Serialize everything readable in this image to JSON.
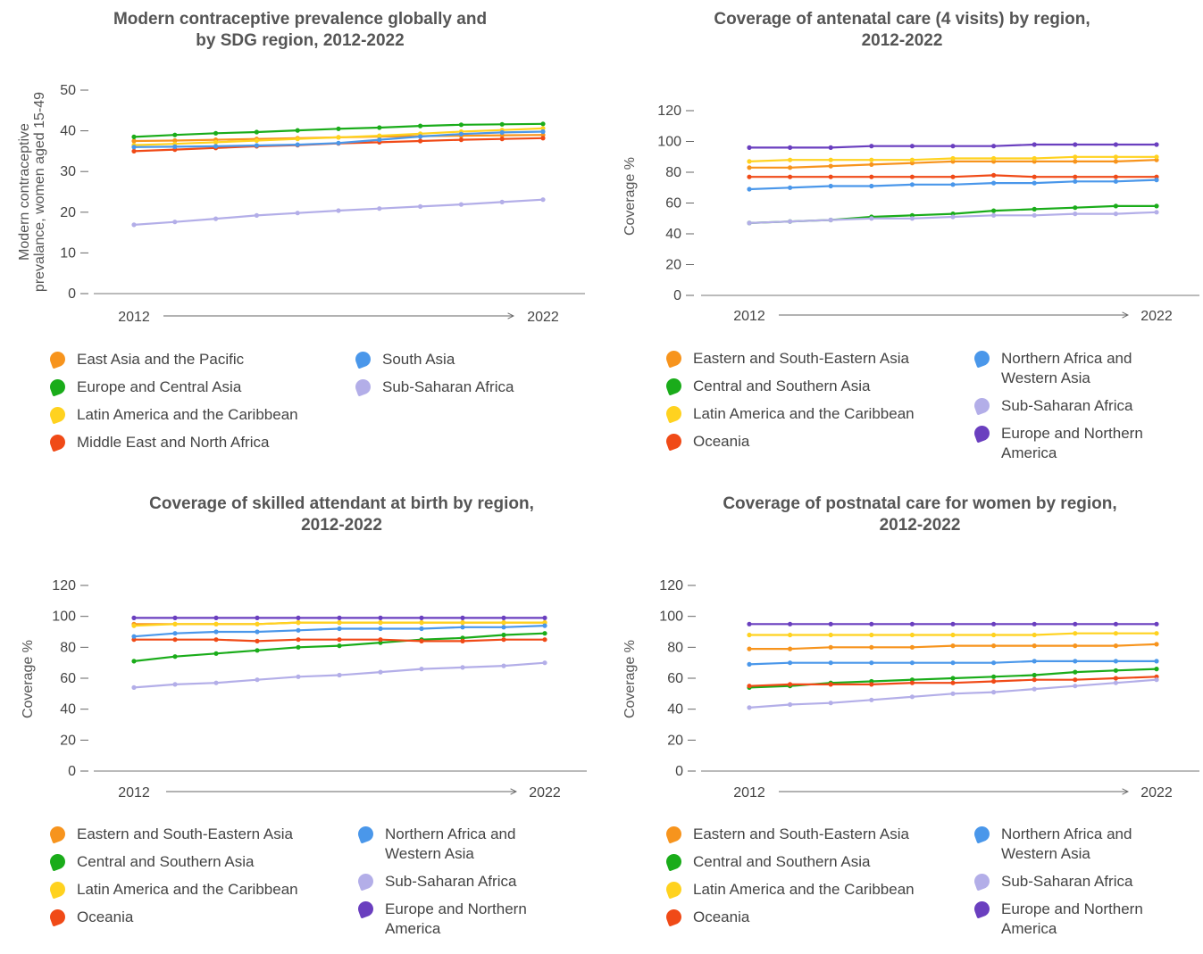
{
  "charts": [
    {
      "title_lines": [
        "Modern contraceptive prevalence globally and",
        "by SDG region, 2012-2022"
      ],
      "ylabel_lines": [
        "Modern contraceptive",
        "prevalance, women aged 15-49"
      ],
      "yticks": [
        "0",
        "10",
        "20",
        "30",
        "40",
        "50"
      ],
      "x_start": "2012",
      "x_end": "2022",
      "legend_left": [
        {
          "label": "East Asia and the Pacific",
          "color": "#f7941d"
        },
        {
          "label": "Europe and Central Asia",
          "color": "#1aac1a"
        },
        {
          "label": "Latin America and the Caribbean",
          "color": "#ffd21f"
        },
        {
          "label": "Middle East and North Africa",
          "color": "#f04a17"
        }
      ],
      "legend_right": [
        {
          "label": "South Asia",
          "color": "#4a97ea"
        },
        {
          "label": "Sub-Saharan Africa",
          "color": "#b3aee8"
        }
      ]
    },
    {
      "title_lines": [
        "Coverage of antenatal care (4 visits) by region,",
        "2012-2022"
      ],
      "ylabel_lines": [
        "Coverage %"
      ],
      "yticks": [
        "0",
        "20",
        "40",
        "60",
        "80",
        "100",
        "120"
      ],
      "x_start": "2012",
      "x_end": "2022",
      "legend_left": [
        {
          "label": "Eastern and South-Eastern Asia",
          "color": "#f7941d"
        },
        {
          "label": "Central and Southern Asia",
          "color": "#1aac1a"
        },
        {
          "label": "Latin America and the Caribbean",
          "color": "#ffd21f"
        },
        {
          "label": "Oceania",
          "color": "#f04a17"
        }
      ],
      "legend_right": [
        {
          "label": "Northern Africa and Western Asia",
          "color": "#4a97ea"
        },
        {
          "label": "Sub-Saharan Africa",
          "color": "#b3aee8"
        },
        {
          "label": "Europe and Northern America",
          "color": "#6a3fbf"
        }
      ]
    },
    {
      "title_lines": [
        "Coverage of skilled attendant at birth by region,",
        "2012-2022"
      ],
      "ylabel_lines": [
        "Coverage %"
      ],
      "yticks": [
        "0",
        "20",
        "40",
        "60",
        "80",
        "100",
        "120"
      ],
      "x_start": "2012",
      "x_end": "2022",
      "legend_left": [
        {
          "label": "Eastern and South-Eastern Asia",
          "color": "#f7941d"
        },
        {
          "label": "Central and Southern Asia",
          "color": "#1aac1a"
        },
        {
          "label": "Latin America and the Caribbean",
          "color": "#ffd21f"
        },
        {
          "label": "Oceania",
          "color": "#f04a17"
        }
      ],
      "legend_right": [
        {
          "label": "Northern Africa and Western Asia",
          "color": "#4a97ea"
        },
        {
          "label": "Sub-Saharan Africa",
          "color": "#b3aee8"
        },
        {
          "label": "Europe and Northern America",
          "color": "#6a3fbf"
        }
      ]
    },
    {
      "title_lines": [
        "Coverage of postnatal care for women by region,",
        "2012-2022"
      ],
      "ylabel_lines": [
        "Coverage %"
      ],
      "yticks": [
        "0",
        "20",
        "40",
        "60",
        "80",
        "100",
        "120"
      ],
      "x_start": "2012",
      "x_end": "2022",
      "legend_left": [
        {
          "label": "Eastern and South-Eastern Asia",
          "color": "#f7941d"
        },
        {
          "label": "Central and Southern Asia",
          "color": "#1aac1a"
        },
        {
          "label": "Latin America and the Caribbean",
          "color": "#ffd21f"
        },
        {
          "label": "Oceania",
          "color": "#f04a17"
        }
      ],
      "legend_right": [
        {
          "label": "Northern Africa and Western Asia",
          "color": "#4a97ea"
        },
        {
          "label": "Sub-Saharan Africa",
          "color": "#b3aee8"
        },
        {
          "label": "Europe and Northern America",
          "color": "#6a3fbf"
        }
      ]
    }
  ],
  "chart_data": [
    {
      "type": "line",
      "title": "Modern contraceptive prevalence globally and by SDG region, 2012-2022",
      "ylabel": "Modern contraceptive prevalance, women aged 15-49",
      "x": [
        2012,
        2013,
        2014,
        2015,
        2016,
        2017,
        2018,
        2019,
        2020,
        2021,
        2022
      ],
      "ylim": [
        0,
        50
      ],
      "series": [
        {
          "name": "East Asia and the Pacific",
          "color": "#f7941d",
          "values": [
            37.5,
            37.6,
            37.8,
            38.0,
            38.2,
            38.4,
            38.6,
            38.7,
            38.8,
            38.9,
            39.0
          ]
        },
        {
          "name": "Europe and Central Asia",
          "color": "#1aac1a",
          "values": [
            38.5,
            39.0,
            39.4,
            39.7,
            40.1,
            40.5,
            40.8,
            41.2,
            41.5,
            41.6,
            41.7
          ]
        },
        {
          "name": "Latin America and the Caribbean",
          "color": "#ffd21f",
          "values": [
            36.5,
            36.8,
            37.2,
            37.6,
            38.0,
            38.4,
            38.8,
            39.3,
            39.8,
            40.2,
            40.6
          ]
        },
        {
          "name": "Middle East and North Africa",
          "color": "#f04a17",
          "values": [
            35.0,
            35.4,
            35.8,
            36.2,
            36.5,
            36.9,
            37.2,
            37.5,
            37.8,
            38.0,
            38.2
          ]
        },
        {
          "name": "South Asia",
          "color": "#4a97ea",
          "values": [
            36.0,
            36.1,
            36.2,
            36.4,
            36.6,
            37.0,
            37.8,
            38.6,
            39.2,
            39.6,
            39.8
          ]
        },
        {
          "name": "Sub-Saharan Africa",
          "color": "#b3aee8",
          "values": [
            16.9,
            17.6,
            18.4,
            19.2,
            19.8,
            20.4,
            20.9,
            21.4,
            21.9,
            22.5,
            23.1
          ]
        }
      ]
    },
    {
      "type": "line",
      "title": "Coverage of antenatal care (4 visits) by region, 2012-2022",
      "ylabel": "Coverage %",
      "x": [
        2012,
        2013,
        2014,
        2015,
        2016,
        2017,
        2018,
        2019,
        2020,
        2021,
        2022
      ],
      "ylim": [
        0,
        120
      ],
      "series": [
        {
          "name": "Eastern and South-Eastern Asia",
          "color": "#f7941d",
          "values": [
            83,
            83,
            84,
            85,
            86,
            87,
            87,
            87,
            87,
            87,
            88
          ]
        },
        {
          "name": "Central and Southern Asia",
          "color": "#1aac1a",
          "values": [
            47,
            48,
            49,
            51,
            52,
            53,
            55,
            56,
            57,
            58,
            58
          ]
        },
        {
          "name": "Latin America and the Caribbean",
          "color": "#ffd21f",
          "values": [
            87,
            88,
            88,
            88,
            88,
            89,
            89,
            89,
            90,
            90,
            90
          ]
        },
        {
          "name": "Oceania",
          "color": "#f04a17",
          "values": [
            77,
            77,
            77,
            77,
            77,
            77,
            78,
            77,
            77,
            77,
            77
          ]
        },
        {
          "name": "Northern Africa and Western Asia",
          "color": "#4a97ea",
          "values": [
            69,
            70,
            71,
            71,
            72,
            72,
            73,
            73,
            74,
            74,
            75
          ]
        },
        {
          "name": "Sub-Saharan Africa",
          "color": "#b3aee8",
          "values": [
            47,
            48,
            49,
            50,
            50,
            51,
            52,
            52,
            53,
            53,
            54
          ]
        },
        {
          "name": "Europe and Northern America",
          "color": "#6a3fbf",
          "values": [
            96,
            96,
            96,
            97,
            97,
            97,
            97,
            98,
            98,
            98,
            98
          ]
        }
      ]
    },
    {
      "type": "line",
      "title": "Coverage of skilled attendant at birth by region, 2012-2022",
      "ylabel": "Coverage %",
      "x": [
        2012,
        2013,
        2014,
        2015,
        2016,
        2017,
        2018,
        2019,
        2020,
        2021,
        2022
      ],
      "ylim": [
        0,
        120
      ],
      "series": [
        {
          "name": "Eastern and South-Eastern Asia",
          "color": "#f7941d",
          "values": [
            95,
            95,
            95,
            95,
            96,
            96,
            96,
            96,
            96,
            96,
            96
          ]
        },
        {
          "name": "Central and Southern Asia",
          "color": "#1aac1a",
          "values": [
            71,
            74,
            76,
            78,
            80,
            81,
            83,
            85,
            86,
            88,
            89
          ]
        },
        {
          "name": "Latin America and the Caribbean",
          "color": "#ffd21f",
          "values": [
            94,
            95,
            95,
            95,
            96,
            96,
            96,
            96,
            96,
            96,
            96
          ]
        },
        {
          "name": "Oceania",
          "color": "#f04a17",
          "values": [
            85,
            85,
            85,
            84,
            85,
            85,
            85,
            84,
            84,
            85,
            85
          ]
        },
        {
          "name": "Northern Africa and Western Asia",
          "color": "#4a97ea",
          "values": [
            87,
            89,
            90,
            90,
            91,
            92,
            92,
            92,
            93,
            93,
            94
          ]
        },
        {
          "name": "Sub-Saharan Africa",
          "color": "#b3aee8",
          "values": [
            54,
            56,
            57,
            59,
            61,
            62,
            64,
            66,
            67,
            68,
            70
          ]
        },
        {
          "name": "Europe and Northern America",
          "color": "#6a3fbf",
          "values": [
            99,
            99,
            99,
            99,
            99,
            99,
            99,
            99,
            99,
            99,
            99
          ]
        }
      ]
    },
    {
      "type": "line",
      "title": "Coverage of postnatal care for women by region, 2012-2022",
      "ylabel": "Coverage %",
      "x": [
        2012,
        2013,
        2014,
        2015,
        2016,
        2017,
        2018,
        2019,
        2020,
        2021,
        2022
      ],
      "ylim": [
        0,
        120
      ],
      "series": [
        {
          "name": "Eastern and South-Eastern Asia",
          "color": "#f7941d",
          "values": [
            79,
            79,
            80,
            80,
            80,
            81,
            81,
            81,
            81,
            81,
            82
          ]
        },
        {
          "name": "Central and Southern Asia",
          "color": "#1aac1a",
          "values": [
            54,
            55,
            57,
            58,
            59,
            60,
            61,
            62,
            64,
            65,
            66
          ]
        },
        {
          "name": "Latin America and the Caribbean",
          "color": "#ffd21f",
          "values": [
            88,
            88,
            88,
            88,
            88,
            88,
            88,
            88,
            89,
            89,
            89
          ]
        },
        {
          "name": "Oceania",
          "color": "#f04a17",
          "values": [
            55,
            56,
            56,
            56,
            57,
            57,
            58,
            59,
            59,
            60,
            61
          ]
        },
        {
          "name": "Northern Africa and Western Asia",
          "color": "#4a97ea",
          "values": [
            69,
            70,
            70,
            70,
            70,
            70,
            70,
            71,
            71,
            71,
            71
          ]
        },
        {
          "name": "Sub-Saharan Africa",
          "color": "#b3aee8",
          "values": [
            41,
            43,
            44,
            46,
            48,
            50,
            51,
            53,
            55,
            57,
            59
          ]
        },
        {
          "name": "Europe and Northern America",
          "color": "#6a3fbf",
          "values": [
            95,
            95,
            95,
            95,
            95,
            95,
            95,
            95,
            95,
            95,
            95
          ]
        }
      ]
    }
  ]
}
